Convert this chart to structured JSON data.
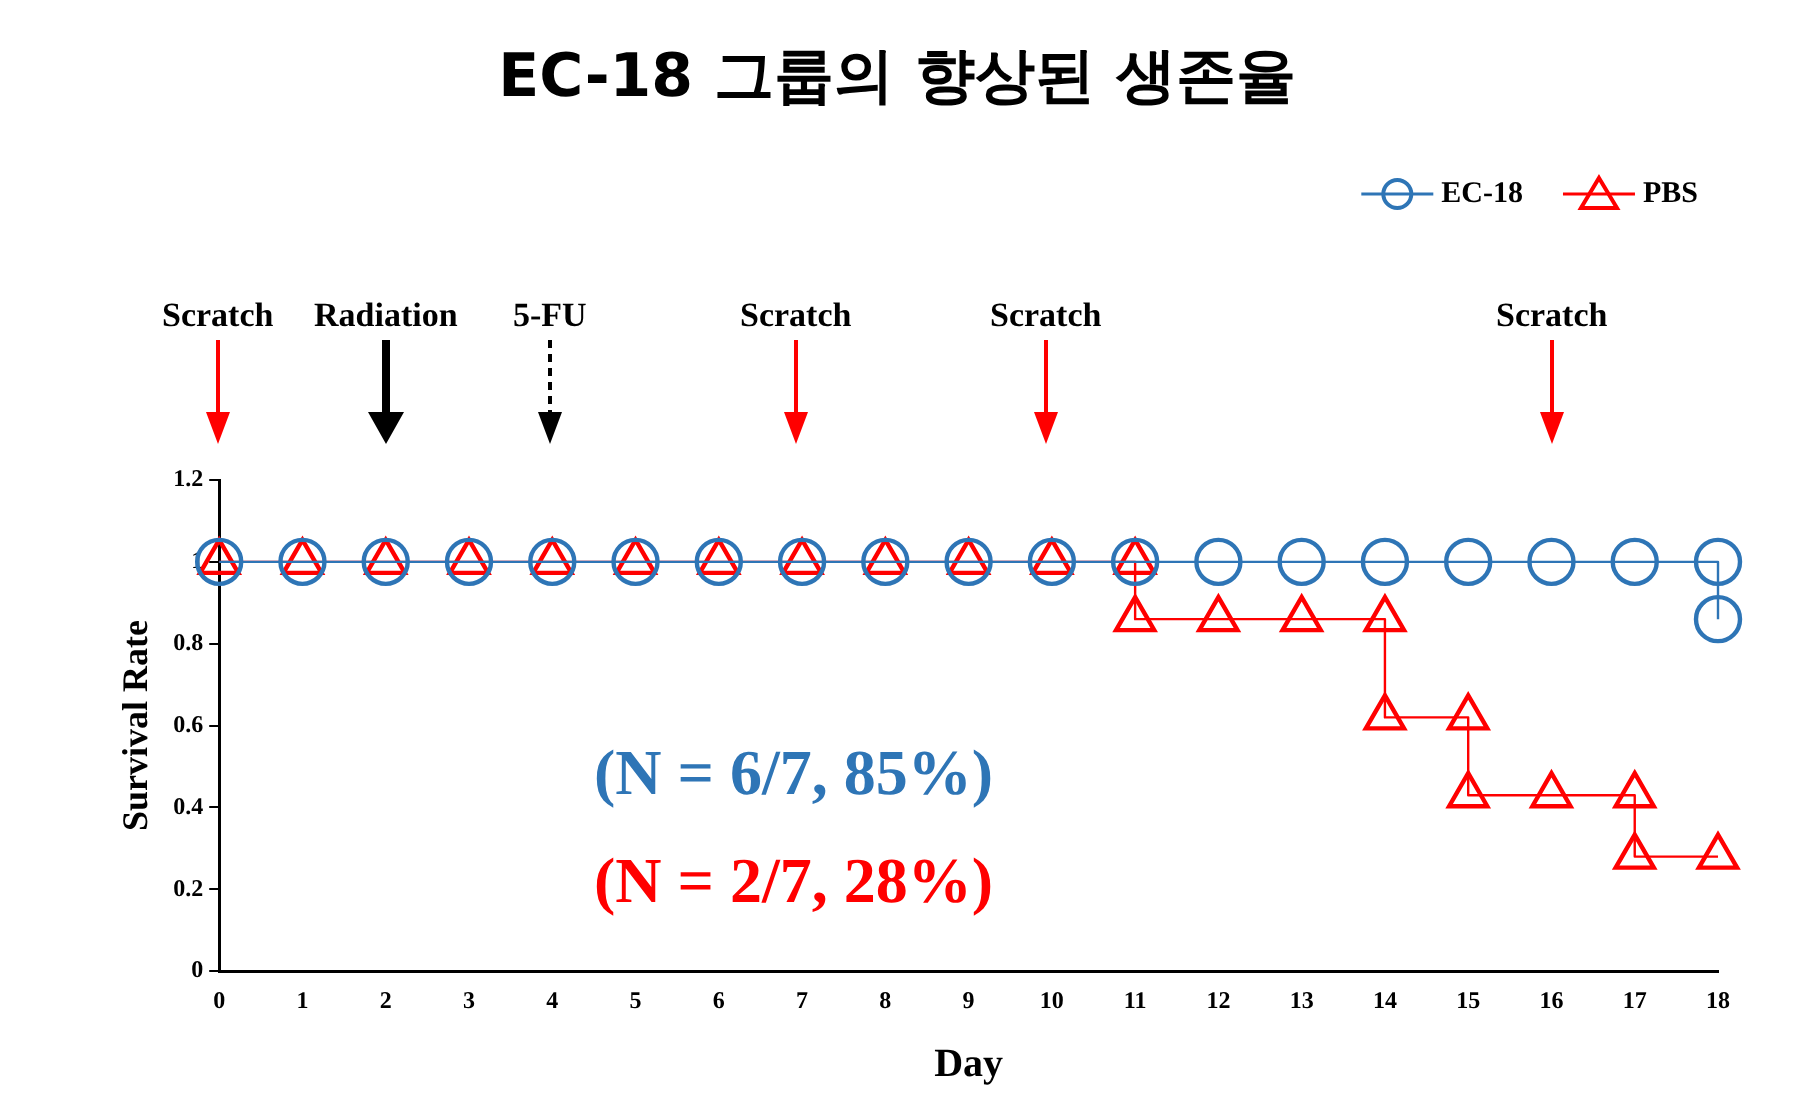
{
  "chart_data": {
    "type": "line",
    "title": "EC-18 그룹의 향상된 생존율",
    "xlabel": "Day",
    "ylabel": "Survival Rate",
    "xlim": [
      0,
      18
    ],
    "xticks": [
      0,
      1,
      2,
      3,
      4,
      5,
      6,
      7,
      8,
      9,
      10,
      11,
      12,
      13,
      14,
      15,
      16,
      17,
      18
    ],
    "ylim": [
      0,
      1.2
    ],
    "yticks": [
      0,
      0.2,
      0.4,
      0.6,
      0.8,
      1,
      1.2
    ],
    "grid": false,
    "legend": "top right",
    "line_style": "solid",
    "series": [
      {
        "name": "EC-18",
        "type": "step",
        "marker": "circle",
        "color": "#2e75b6",
        "x": [
          0,
          1,
          2,
          3,
          4,
          5,
          6,
          7,
          8,
          9,
          10,
          11,
          12,
          13,
          14,
          15,
          16,
          17,
          18,
          18
        ],
        "values": [
          1,
          1,
          1,
          1,
          1,
          1,
          1,
          1,
          1,
          1,
          1,
          1,
          1,
          1,
          1,
          1,
          1,
          1,
          1,
          0.86
        ]
      },
      {
        "name": "PBS",
        "type": "step",
        "marker": "triangle",
        "color": "#ff0000",
        "x": [
          0,
          1,
          2,
          3,
          4,
          5,
          6,
          7,
          8,
          9,
          10,
          11,
          11,
          12,
          13,
          14,
          14,
          15,
          15,
          16,
          17,
          17,
          18
        ],
        "values": [
          1,
          1,
          1,
          1,
          1,
          1,
          1,
          1,
          1,
          1,
          1,
          1,
          0.86,
          0.86,
          0.86,
          0.86,
          0.62,
          0.62,
          0.43,
          0.43,
          0.43,
          0.28,
          0.28
        ]
      }
    ],
    "annotations": [
      "Scratch",
      "Radiation",
      "5-FU",
      "Scratch",
      "Scratch",
      "Scratch",
      "(N = 6/7, 85%)",
      "(N = 2/7, 28%)"
    ]
  }
}
